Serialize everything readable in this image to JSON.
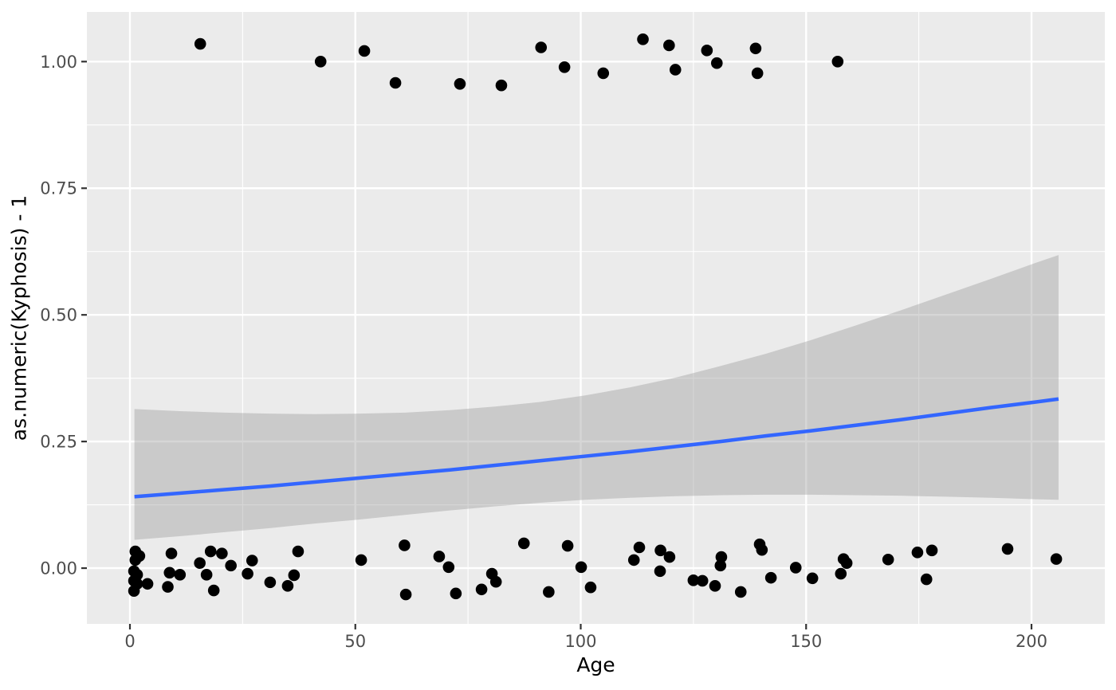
{
  "chart_data": {
    "type": "scatter",
    "title": "",
    "xlabel": "Age",
    "ylabel": "as.numeric(Kyphosis) - 1",
    "xlim": [
      -9.55,
      216.27
    ],
    "ylim": [
      -0.11,
      1.098
    ],
    "grid": true,
    "legend": "none",
    "x_ticks": [
      0,
      50,
      100,
      150,
      200
    ],
    "x_tick_labels": [
      "0",
      "50",
      "100",
      "150",
      "200"
    ],
    "x_minor_ticks": [
      25,
      75,
      125,
      175
    ],
    "y_ticks": [
      0.0,
      0.25,
      0.5,
      0.75,
      1.0
    ],
    "y_tick_labels": [
      "0.00",
      "0.25",
      "0.50",
      "0.75",
      "1.00"
    ],
    "y_minor_ticks": [
      0.125,
      0.375,
      0.625,
      0.875
    ],
    "colors": {
      "panel_bg": "#EBEBEB",
      "grid_major": "#FFFFFF",
      "grid_minor": "#FFFFFF",
      "point": "#000000",
      "smooth_line": "#3366FF",
      "ribbon": "#999999",
      "ribbon_opacity": 0.4,
      "tick_mark": "#333333",
      "tick_text": "#4D4D4D",
      "axis_title": "#000000",
      "outer_bg": "#FFFFFF"
    },
    "points": [
      [
        15.6,
        1.035
      ],
      [
        42.3,
        1.0
      ],
      [
        52.0,
        1.021
      ],
      [
        58.9,
        0.958
      ],
      [
        73.2,
        0.956
      ],
      [
        82.4,
        0.953
      ],
      [
        91.2,
        1.028
      ],
      [
        96.4,
        0.989
      ],
      [
        105.0,
        0.977
      ],
      [
        113.8,
        1.044
      ],
      [
        119.6,
        1.032
      ],
      [
        121.0,
        0.984
      ],
      [
        128.0,
        1.022
      ],
      [
        130.2,
        0.997
      ],
      [
        138.8,
        1.026
      ],
      [
        139.2,
        0.977
      ],
      [
        157.0,
        1.0
      ],
      [
        0.9,
        -0.006
      ],
      [
        0.9,
        -0.025
      ],
      [
        0.9,
        -0.045
      ],
      [
        1.2,
        0.033
      ],
      [
        1.2,
        0.016
      ],
      [
        1.6,
        -0.013
      ],
      [
        1.6,
        -0.031
      ],
      [
        2.1,
        0.024
      ],
      [
        3.9,
        -0.031
      ],
      [
        8.4,
        -0.037
      ],
      [
        8.8,
        -0.009
      ],
      [
        9.2,
        0.029
      ],
      [
        11.1,
        -0.013
      ],
      [
        15.5,
        0.01
      ],
      [
        17.0,
        -0.013
      ],
      [
        17.9,
        0.033
      ],
      [
        18.6,
        -0.044
      ],
      [
        20.4,
        0.029
      ],
      [
        22.4,
        0.005
      ],
      [
        26.1,
        -0.011
      ],
      [
        27.1,
        0.015
      ],
      [
        31.1,
        -0.028
      ],
      [
        35.0,
        -0.035
      ],
      [
        36.4,
        -0.014
      ],
      [
        37.3,
        0.033
      ],
      [
        51.3,
        0.016
      ],
      [
        60.9,
        0.045
      ],
      [
        61.2,
        -0.052
      ],
      [
        68.6,
        0.023
      ],
      [
        70.7,
        0.002
      ],
      [
        72.3,
        -0.05
      ],
      [
        78.0,
        -0.042
      ],
      [
        80.3,
        -0.011
      ],
      [
        81.2,
        -0.027
      ],
      [
        87.4,
        0.049
      ],
      [
        92.9,
        -0.047
      ],
      [
        97.1,
        0.044
      ],
      [
        100.1,
        0.002
      ],
      [
        102.2,
        -0.038
      ],
      [
        111.8,
        0.016
      ],
      [
        113.0,
        0.041
      ],
      [
        117.6,
        -0.006
      ],
      [
        117.7,
        0.035
      ],
      [
        119.7,
        0.022
      ],
      [
        125.0,
        -0.024
      ],
      [
        127.0,
        -0.025
      ],
      [
        129.8,
        -0.035
      ],
      [
        131.0,
        0.005
      ],
      [
        131.2,
        0.022
      ],
      [
        135.5,
        -0.047
      ],
      [
        139.7,
        0.047
      ],
      [
        140.2,
        0.036
      ],
      [
        142.2,
        -0.019
      ],
      [
        147.7,
        0.001
      ],
      [
        151.4,
        -0.02
      ],
      [
        157.7,
        -0.011
      ],
      [
        158.3,
        0.018
      ],
      [
        159.0,
        0.01
      ],
      [
        168.2,
        0.017
      ],
      [
        174.7,
        0.031
      ],
      [
        177.9,
        0.035
      ],
      [
        176.7,
        -0.022
      ],
      [
        194.7,
        0.038
      ],
      [
        205.5,
        0.018
      ]
    ],
    "smooth": {
      "method": "glm-binomial",
      "samples": [
        {
          "x": 1,
          "y": 0.141,
          "ymin": 0.056,
          "ymax": 0.314
        },
        {
          "x": 11,
          "y": 0.148,
          "ymin": 0.063,
          "ymax": 0.31
        },
        {
          "x": 21,
          "y": 0.155,
          "ymin": 0.071,
          "ymax": 0.307
        },
        {
          "x": 31,
          "y": 0.162,
          "ymin": 0.079,
          "ymax": 0.305
        },
        {
          "x": 41,
          "y": 0.17,
          "ymin": 0.088,
          "ymax": 0.304
        },
        {
          "x": 51,
          "y": 0.178,
          "ymin": 0.096,
          "ymax": 0.305
        },
        {
          "x": 61,
          "y": 0.186,
          "ymin": 0.105,
          "ymax": 0.307
        },
        {
          "x": 71,
          "y": 0.194,
          "ymin": 0.114,
          "ymax": 0.312
        },
        {
          "x": 81,
          "y": 0.203,
          "ymin": 0.122,
          "ymax": 0.319
        },
        {
          "x": 91,
          "y": 0.212,
          "ymin": 0.129,
          "ymax": 0.328
        },
        {
          "x": 101,
          "y": 0.221,
          "ymin": 0.135,
          "ymax": 0.341
        },
        {
          "x": 111,
          "y": 0.23,
          "ymin": 0.139,
          "ymax": 0.357
        },
        {
          "x": 121,
          "y": 0.24,
          "ymin": 0.142,
          "ymax": 0.376
        },
        {
          "x": 131,
          "y": 0.25,
          "ymin": 0.144,
          "ymax": 0.399
        },
        {
          "x": 141,
          "y": 0.261,
          "ymin": 0.145,
          "ymax": 0.423
        },
        {
          "x": 151,
          "y": 0.271,
          "ymin": 0.145,
          "ymax": 0.45
        },
        {
          "x": 161,
          "y": 0.282,
          "ymin": 0.144,
          "ymax": 0.479
        },
        {
          "x": 171,
          "y": 0.293,
          "ymin": 0.143,
          "ymax": 0.509
        },
        {
          "x": 181,
          "y": 0.305,
          "ymin": 0.141,
          "ymax": 0.54
        },
        {
          "x": 191,
          "y": 0.317,
          "ymin": 0.139,
          "ymax": 0.571
        },
        {
          "x": 201,
          "y": 0.328,
          "ymin": 0.136,
          "ymax": 0.603
        },
        {
          "x": 206,
          "y": 0.334,
          "ymin": 0.135,
          "ymax": 0.618
        }
      ]
    }
  }
}
